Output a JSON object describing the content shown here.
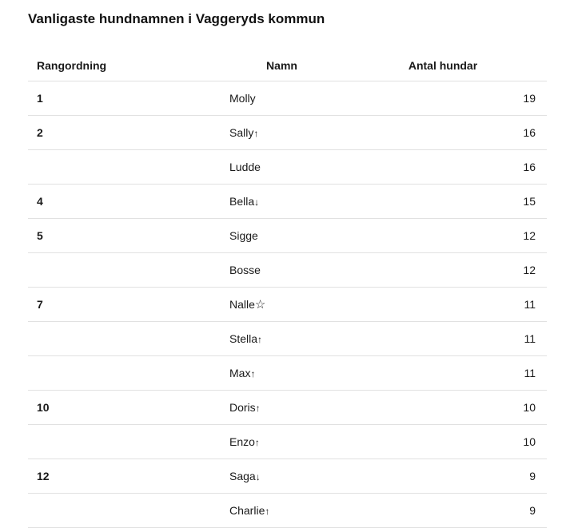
{
  "chart_data": {
    "type": "table",
    "title": "Vanligaste hundnamnen i Vaggeryds kommun",
    "columns": [
      "Rangordning",
      "Namn",
      "Antal hundar"
    ],
    "symbols": {
      "up": "↑",
      "down": "↓",
      "star": "☆"
    },
    "rows": [
      {
        "rank": "1",
        "name": "Molly",
        "trend": "",
        "count": "19"
      },
      {
        "rank": "2",
        "name": "Sally",
        "trend": "up",
        "count": "16"
      },
      {
        "rank": "",
        "name": "Ludde",
        "trend": "",
        "count": "16"
      },
      {
        "rank": "4",
        "name": "Bella",
        "trend": "down",
        "count": "15"
      },
      {
        "rank": "5",
        "name": "Sigge",
        "trend": "",
        "count": "12"
      },
      {
        "rank": "",
        "name": "Bosse",
        "trend": "",
        "count": "12"
      },
      {
        "rank": "7",
        "name": "Nalle",
        "trend": "star",
        "count": "11"
      },
      {
        "rank": "",
        "name": "Stella",
        "trend": "up",
        "count": "11"
      },
      {
        "rank": "",
        "name": "Max",
        "trend": "up",
        "count": "11"
      },
      {
        "rank": "10",
        "name": "Doris",
        "trend": "up",
        "count": "10"
      },
      {
        "rank": "",
        "name": "Enzo",
        "trend": "up",
        "count": "10"
      },
      {
        "rank": "12",
        "name": "Saga",
        "trend": "down",
        "count": "9"
      },
      {
        "rank": "",
        "name": "Charlie",
        "trend": "up",
        "count": "9"
      }
    ],
    "colors": {
      "text": "#1a1a1a",
      "title": "#111111",
      "border": "#e0e0e0",
      "background": "#ffffff"
    }
  }
}
